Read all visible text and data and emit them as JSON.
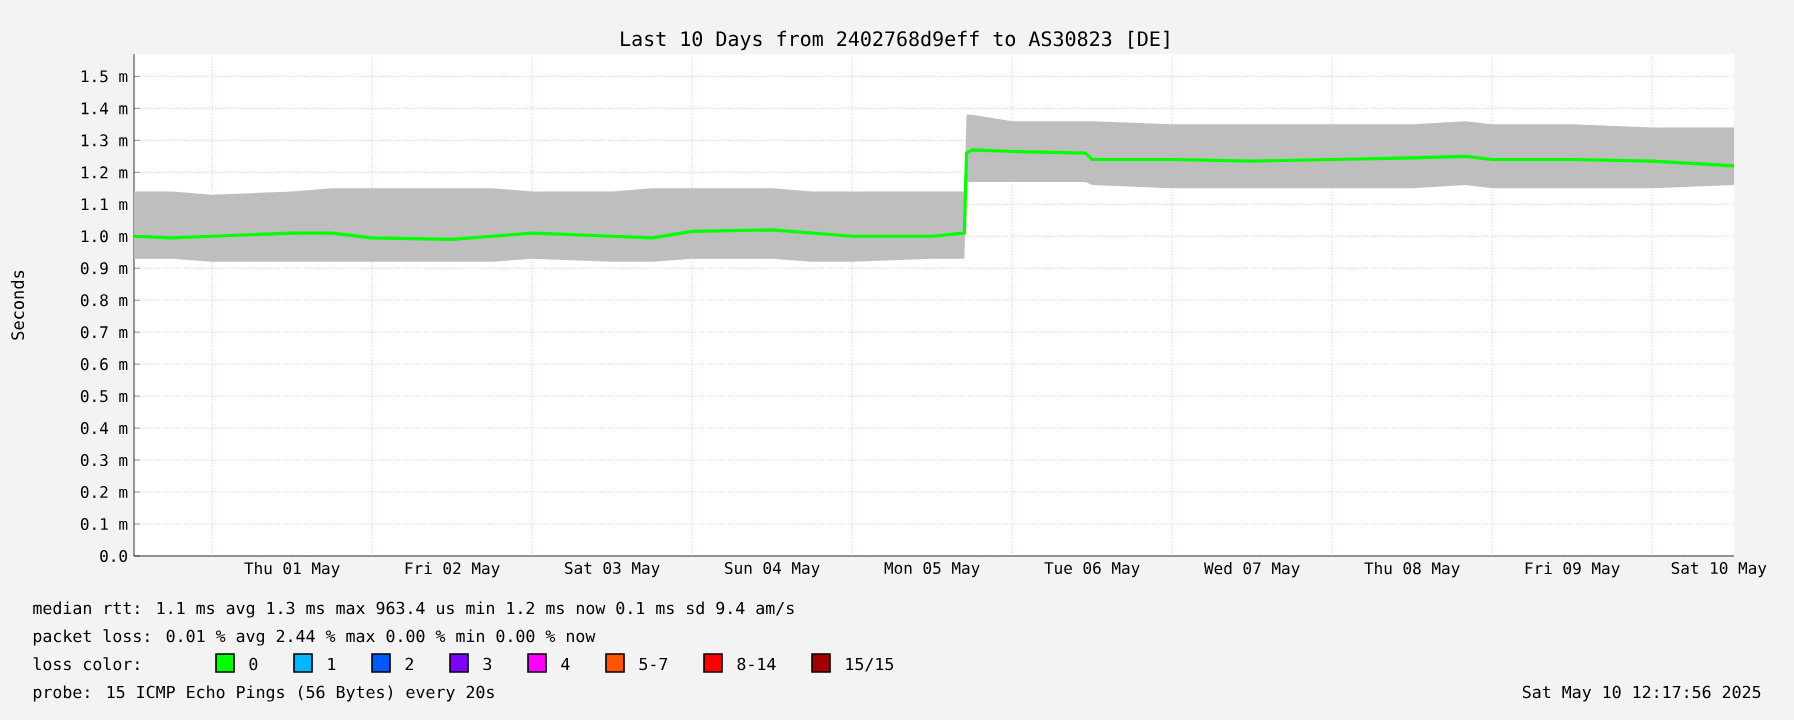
{
  "chart_data": {
    "type": "line",
    "title": "Last 10 Days from 2402768d9eff to AS30823 [DE]",
    "ylabel": "Seconds",
    "xlim": [
      "2025-04-30T12:17",
      "2025-05-10T12:17"
    ],
    "ylim": [
      0,
      1.57
    ],
    "yticks": [
      {
        "value": 0,
        "label": "0.0"
      },
      {
        "value": 0.1,
        "label": "0.1 m"
      },
      {
        "value": 0.2,
        "label": "0.2 m"
      },
      {
        "value": 0.3,
        "label": "0.3 m"
      },
      {
        "value": 0.4,
        "label": "0.4 m"
      },
      {
        "value": 0.5,
        "label": "0.5 m"
      },
      {
        "value": 0.6,
        "label": "0.6 m"
      },
      {
        "value": 0.7,
        "label": "0.7 m"
      },
      {
        "value": 0.8,
        "label": "0.8 m"
      },
      {
        "value": 0.9,
        "label": "0.9 m"
      },
      {
        "value": 1.0,
        "label": "1.0 m"
      },
      {
        "value": 1.1,
        "label": "1.1 m"
      },
      {
        "value": 1.2,
        "label": "1.2 m"
      },
      {
        "value": 1.3,
        "label": "1.3 m"
      },
      {
        "value": 1.4,
        "label": "1.4 m"
      },
      {
        "value": 1.5,
        "label": "1.5 m"
      }
    ],
    "xticks": [
      {
        "value": "2025-05-01T12:00",
        "label": "Thu 01 May"
      },
      {
        "value": "2025-05-02T12:00",
        "label": "Fri 02 May"
      },
      {
        "value": "2025-05-03T12:00",
        "label": "Sat 03 May"
      },
      {
        "value": "2025-05-04T12:00",
        "label": "Sun 04 May"
      },
      {
        "value": "2025-05-05T12:00",
        "label": "Mon 05 May"
      },
      {
        "value": "2025-05-06T12:00",
        "label": "Tue 06 May"
      },
      {
        "value": "2025-05-07T12:00",
        "label": "Wed 07 May"
      },
      {
        "value": "2025-05-08T12:00",
        "label": "Thu 08 May"
      },
      {
        "value": "2025-05-09T12:00",
        "label": "Fri 09 May"
      },
      {
        "value": "2025-05-10T10:00",
        "label": "Sat 10 May"
      },
      {
        "value": "2025-05-01",
        "label": null
      },
      {
        "value": "2025-05-02",
        "label": null
      },
      {
        "value": "2025-05-03",
        "label": null
      },
      {
        "value": "2025-05-04",
        "label": null
      },
      {
        "value": "2025-05-05",
        "label": null
      },
      {
        "value": "2025-05-06",
        "label": null
      },
      {
        "value": "2025-05-07",
        "label": null
      },
      {
        "value": "2025-05-08",
        "label": null
      },
      {
        "value": "2025-05-09",
        "label": null
      },
      {
        "value": "2025-05-10",
        "label": null
      }
    ],
    "x": [
      "2025-04-30T12:17",
      "2025-04-30T18:00",
      "2025-05-01T00:00",
      "2025-05-01T12:00",
      "2025-05-01T18:00",
      "2025-05-02T00:00",
      "2025-05-02T12:00",
      "2025-05-02T18:00",
      "2025-05-03T00:00",
      "2025-05-03T12:00",
      "2025-05-03T18:00",
      "2025-05-04T00:00",
      "2025-05-04T12:00",
      "2025-05-04T18:00",
      "2025-05-05T00:00",
      "2025-05-05T12:00",
      "2025-05-05T16:50",
      "2025-05-05T17:10",
      "2025-05-05T18:00",
      "2025-05-06T00:00",
      "2025-05-06T11:00",
      "2025-05-06T12:00",
      "2025-05-07T00:00",
      "2025-05-07T12:00",
      "2025-05-08T00:00",
      "2025-05-08T12:00",
      "2025-05-08T20:00",
      "2025-05-09T00:00",
      "2025-05-09T12:00",
      "2025-05-10T00:00",
      "2025-05-10T12:17"
    ],
    "series": [
      {
        "name": "0",
        "color": "#00ff00",
        "values": [
          1.0,
          0.995,
          1.0,
          1.01,
          1.01,
          0.995,
          0.99,
          1.0,
          1.01,
          1.0,
          0.995,
          1.015,
          1.02,
          1.01,
          1.0,
          1.0,
          1.01,
          1.26,
          1.27,
          1.265,
          1.26,
          1.24,
          1.24,
          1.235,
          1.24,
          1.245,
          1.25,
          1.24,
          1.24,
          1.235,
          1.22
        ],
        "lower": [
          0.93,
          0.93,
          0.92,
          0.92,
          0.92,
          0.92,
          0.92,
          0.92,
          0.93,
          0.92,
          0.92,
          0.93,
          0.93,
          0.92,
          0.92,
          0.93,
          0.93,
          1.17,
          1.17,
          1.17,
          1.17,
          1.16,
          1.15,
          1.15,
          1.15,
          1.15,
          1.16,
          1.15,
          1.15,
          1.15,
          1.16
        ],
        "upper": [
          1.14,
          1.14,
          1.13,
          1.14,
          1.15,
          1.15,
          1.15,
          1.15,
          1.14,
          1.14,
          1.15,
          1.15,
          1.15,
          1.14,
          1.14,
          1.14,
          1.14,
          1.38,
          1.38,
          1.36,
          1.36,
          1.36,
          1.35,
          1.35,
          1.35,
          1.35,
          1.36,
          1.35,
          1.35,
          1.34,
          1.34
        ]
      },
      {
        "name": "1",
        "color": "#00b8ff",
        "values": [
          null,
          null,
          null,
          null,
          null,
          null,
          null,
          null,
          null,
          null,
          null,
          null,
          null,
          null,
          null,
          null,
          null,
          null,
          null,
          null,
          null,
          null,
          null,
          null,
          null,
          null,
          null,
          null,
          null,
          null,
          null
        ]
      },
      {
        "name": "2",
        "color": "#0059ff",
        "values": [
          null,
          null,
          null,
          null,
          null,
          null,
          null,
          null,
          null,
          null,
          null,
          null,
          null,
          null,
          null,
          null,
          null,
          null,
          null,
          null,
          null,
          null,
          null,
          null,
          null,
          null,
          null,
          null,
          null,
          null,
          null
        ]
      },
      {
        "name": "3",
        "color": "#7e00ff",
        "values": [
          null,
          null,
          null,
          null,
          null,
          null,
          null,
          null,
          null,
          null,
          null,
          null,
          null,
          null,
          null,
          null,
          null,
          null,
          null,
          null,
          null,
          null,
          null,
          null,
          null,
          null,
          null,
          null,
          null,
          null,
          null
        ]
      },
      {
        "name": "4",
        "color": "#ff00ff",
        "values": [
          null,
          null,
          null,
          null,
          null,
          null,
          null,
          null,
          null,
          null,
          null,
          null,
          null,
          null,
          null,
          null,
          null,
          null,
          null,
          null,
          null,
          null,
          null,
          null,
          null,
          null,
          null,
          null,
          null,
          null,
          null
        ]
      },
      {
        "name": "5-7",
        "color": "#ff5500",
        "values": [
          null,
          null,
          null,
          null,
          null,
          null,
          null,
          null,
          null,
          null,
          null,
          null,
          null,
          null,
          null,
          null,
          null,
          null,
          null,
          null,
          null,
          null,
          null,
          null,
          null,
          null,
          null,
          null,
          null,
          null,
          null
        ]
      },
      {
        "name": "8-14",
        "color": "#ff0000",
        "values": [
          null,
          null,
          null,
          null,
          null,
          null,
          null,
          null,
          null,
          null,
          null,
          null,
          null,
          null,
          null,
          null,
          null,
          null,
          null,
          null,
          null,
          null,
          null,
          null,
          null,
          null,
          null,
          null,
          null,
          null,
          null
        ]
      },
      {
        "name": "15/15",
        "color": "#a10000",
        "values": [
          null,
          null,
          null,
          null,
          null,
          null,
          null,
          null,
          null,
          null,
          null,
          null,
          null,
          null,
          null,
          null,
          null,
          null,
          null,
          null,
          null,
          null,
          null,
          null,
          null,
          null,
          null,
          null,
          null,
          null,
          null
        ]
      }
    ],
    "legend_title": "loss color:",
    "legend": "bottom left",
    "grid": true,
    "marker": "none",
    "line_style": "solid",
    "annotations": [
      "median rtt:  1.1 ms avg  1.3 ms max  963.4 us min  1.2 ms now  0.1 ms sd  9.4   am/s",
      "packet loss: 0.01 % avg  2.44 % max  0.00 % min  0.00 % now",
      "probe:       15 ICMP Echo Pings (56 Bytes) every 20s",
      "Sat May 10 12:17:56 2025"
    ]
  }
}
